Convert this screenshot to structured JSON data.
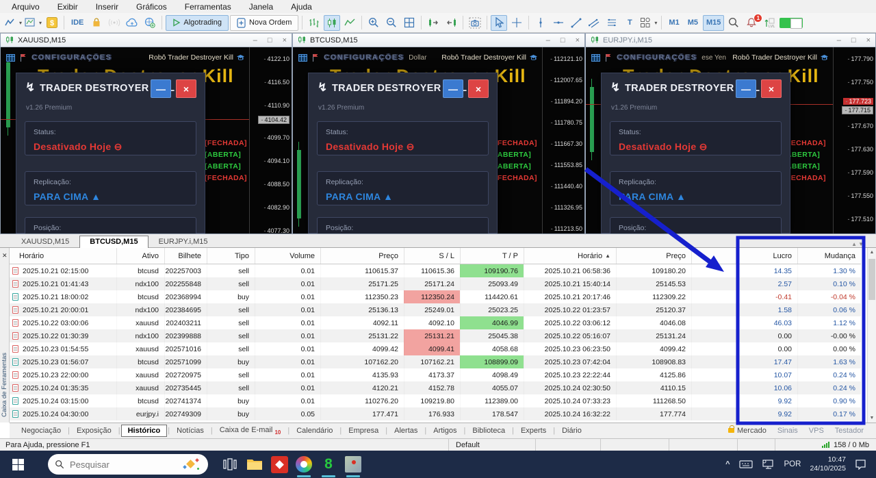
{
  "menu": {
    "items": [
      "Arquivo",
      "Exibir",
      "Inserir",
      "Gráficos",
      "Ferramentas",
      "Janela",
      "Ajuda"
    ]
  },
  "toolbar": {
    "ide": "IDE",
    "algotrading": "Algotrading",
    "nova_ordem": "Nova Ordem",
    "text_tool": "T",
    "m1": "M1",
    "m5": "M5",
    "m15": "M15",
    "notification_badge": "1"
  },
  "panel": {
    "title": "TRADER DESTROYER KILL",
    "version": "v1.26 Premium",
    "status_label": "Status:",
    "status_value": "Desativado Hoje",
    "replication_label": "Replicação:",
    "replication_value": "PARA CIMA",
    "position_label": "Posição:"
  },
  "charts": [
    {
      "title": "XAUUSD,M15",
      "config": "CONFIGURAÇÕES",
      "desc": "",
      "robo": "Robô Trader Destroyer Kill",
      "watermark": "Trader Destroyer Kill",
      "logo": "ER",
      "labels": [
        {
          "t": "[FECHADA]",
          "c": "red"
        },
        {
          "t": "[ABERTA]",
          "c": "green"
        },
        {
          "t": "[ABERTA]",
          "c": "green"
        },
        {
          "t": "[FECHADA]",
          "c": "red"
        }
      ],
      "prices": [
        {
          "v": "4122.10"
        },
        {
          "v": "4116.50"
        },
        {
          "v": "4110.90"
        },
        {
          "v": "4104.42",
          "hl": "gray"
        },
        {
          "v": "4099.70"
        },
        {
          "v": "4094.10"
        },
        {
          "v": "4088.50"
        },
        {
          "v": "4082.90"
        },
        {
          "v": "4077.30"
        }
      ]
    },
    {
      "title": "BTCUSD,M15",
      "config": "CONFIGURAÇÕES",
      "desc": "Dollar",
      "robo": "Robô Trader Destroyer Kill",
      "watermark": "Trader Destroyer Kill",
      "logo": "ER",
      "labels": [
        {
          "t": "[FECHADA]",
          "c": "red"
        },
        {
          "t": "[ABERTA]",
          "c": "green"
        },
        {
          "t": "[ABERTA]",
          "c": "green"
        },
        {
          "t": "[FECHADA]",
          "c": "red"
        }
      ],
      "prices": [
        {
          "v": "112121.10"
        },
        {
          "v": "112007.65"
        },
        {
          "v": "111894.20"
        },
        {
          "v": "111780.75"
        },
        {
          "v": "111667.30"
        },
        {
          "v": "111553.85"
        },
        {
          "v": "111440.40"
        },
        {
          "v": "111326.95"
        },
        {
          "v": "111213.50"
        }
      ]
    },
    {
      "title": "EURJPY.i,M15",
      "config": "CONFIGURAÇÕES",
      "desc": "ese Yen",
      "robo": "Robô Trader Destroyer Kill",
      "watermark": "Trader Destroyer Kill",
      "logo": "ER",
      "labels": [
        {
          "t": "[FECHADA]",
          "c": "red"
        },
        {
          "t": "[ABERTA]",
          "c": "green"
        },
        {
          "t": "[ABERTA]",
          "c": "green"
        },
        {
          "t": "[FECHADA]",
          "c": "red"
        }
      ],
      "prices": [
        {
          "v": "177.790"
        },
        {
          "v": "177.750"
        },
        {
          "v": "177.723",
          "hl": "red"
        },
        {
          "v": "177.715",
          "hl": "gray"
        },
        {
          "v": "177.670"
        },
        {
          "v": "177.630"
        },
        {
          "v": "177.590"
        },
        {
          "v": "177.550"
        },
        {
          "v": "177.510"
        }
      ]
    }
  ],
  "toolbox": {
    "chart_tabs": [
      {
        "label": "XAUUSD,M15",
        "active": false
      },
      {
        "label": "BTCUSD,M15",
        "active": true
      },
      {
        "label": "EURJPY.i,M15",
        "active": false
      }
    ],
    "columns": [
      "Horário",
      "Ativo",
      "Bilhete",
      "Tipo",
      "Volume",
      "Preço",
      "S / L",
      "T / P",
      "Horário",
      "Preço",
      "",
      "Lucro",
      "Mudança"
    ],
    "rows": [
      {
        "open_time": "2025.10.21 02:15:00",
        "symbol": "btcusd",
        "ticket": "202257003",
        "type": "sell",
        "volume": "0.01",
        "open_price": "110615.37",
        "sl": "110615.36",
        "sl_hl": false,
        "tp": "109190.76",
        "tp_hl": true,
        "close_time": "2025.10.21 06:58:36",
        "close_price": "109180.20",
        "profit": "14.35",
        "change": "1.30 %"
      },
      {
        "open_time": "2025.10.21 01:41:43",
        "symbol": "ndx100",
        "ticket": "202255848",
        "type": "sell",
        "volume": "0.01",
        "open_price": "25171.25",
        "sl": "25171.24",
        "sl_hl": false,
        "tp": "25093.49",
        "tp_hl": false,
        "close_time": "2025.10.21 15:40:14",
        "close_price": "25145.53",
        "profit": "2.57",
        "change": "0.10 %"
      },
      {
        "open_time": "2025.10.21 18:00:02",
        "symbol": "btcusd",
        "ticket": "202368994",
        "type": "buy",
        "volume": "0.01",
        "open_price": "112350.23",
        "sl": "112350.24",
        "sl_hl": true,
        "tp": "114420.61",
        "tp_hl": false,
        "close_time": "2025.10.21 20:17:46",
        "close_price": "112309.22",
        "profit": "-0.41",
        "change": "-0.04 %"
      },
      {
        "open_time": "2025.10.21 20:00:01",
        "symbol": "ndx100",
        "ticket": "202384695",
        "type": "sell",
        "volume": "0.01",
        "open_price": "25136.13",
        "sl": "25249.01",
        "sl_hl": false,
        "tp": "25023.25",
        "tp_hl": false,
        "close_time": "2025.10.22 01:23:57",
        "close_price": "25120.37",
        "profit": "1.58",
        "change": "0.06 %"
      },
      {
        "open_time": "2025.10.22 03:00:06",
        "symbol": "xauusd",
        "ticket": "202403211",
        "type": "sell",
        "volume": "0.01",
        "open_price": "4092.11",
        "sl": "4092.10",
        "sl_hl": false,
        "tp": "4046.99",
        "tp_hl": true,
        "close_time": "2025.10.22 03:06:12",
        "close_price": "4046.08",
        "profit": "46.03",
        "change": "1.12 %"
      },
      {
        "open_time": "2025.10.22 01:30:39",
        "symbol": "ndx100",
        "ticket": "202399888",
        "type": "sell",
        "volume": "0.01",
        "open_price": "25131.22",
        "sl": "25131.21",
        "sl_hl": true,
        "tp": "25045.38",
        "tp_hl": false,
        "close_time": "2025.10.22 05:16:07",
        "close_price": "25131.24",
        "profit": "0.00",
        "change": "-0.00 %"
      },
      {
        "open_time": "2025.10.23 01:54:55",
        "symbol": "xauusd",
        "ticket": "202571016",
        "type": "sell",
        "volume": "0.01",
        "open_price": "4099.42",
        "sl": "4099.41",
        "sl_hl": true,
        "tp": "4058.68",
        "tp_hl": false,
        "close_time": "2025.10.23 06:23:50",
        "close_price": "4099.42",
        "profit": "0.00",
        "change": "0.00 %"
      },
      {
        "open_time": "2025.10.23 01:56:07",
        "symbol": "btcusd",
        "ticket": "202571099",
        "type": "buy",
        "volume": "0.01",
        "open_price": "107162.20",
        "sl": "107162.21",
        "sl_hl": false,
        "tp": "108899.09",
        "tp_hl": true,
        "close_time": "2025.10.23 07:42:04",
        "close_price": "108908.83",
        "profit": "17.47",
        "change": "1.63 %"
      },
      {
        "open_time": "2025.10.23 22:00:00",
        "symbol": "xauusd",
        "ticket": "202720975",
        "type": "sell",
        "volume": "0.01",
        "open_price": "4135.93",
        "sl": "4173.37",
        "sl_hl": false,
        "tp": "4098.49",
        "tp_hl": false,
        "close_time": "2025.10.23 22:22:44",
        "close_price": "4125.86",
        "profit": "10.07",
        "change": "0.24 %"
      },
      {
        "open_time": "2025.10.24 01:35:35",
        "symbol": "xauusd",
        "ticket": "202735445",
        "type": "sell",
        "volume": "0.01",
        "open_price": "4120.21",
        "sl": "4152.78",
        "sl_hl": false,
        "tp": "4055.07",
        "tp_hl": false,
        "close_time": "2025.10.24 02:30:50",
        "close_price": "4110.15",
        "profit": "10.06",
        "change": "0.24 %"
      },
      {
        "open_time": "2025.10.24 03:15:00",
        "symbol": "btcusd",
        "ticket": "202741374",
        "type": "buy",
        "volume": "0.01",
        "open_price": "110276.20",
        "sl": "109219.80",
        "sl_hl": false,
        "tp": "112389.00",
        "tp_hl": false,
        "close_time": "2025.10.24 07:33:23",
        "close_price": "111268.50",
        "profit": "9.92",
        "change": "0.90 %"
      },
      {
        "open_time": "2025.10.24 04:30:00",
        "symbol": "eurjpy.i",
        "ticket": "202749309",
        "type": "buy",
        "volume": "0.05",
        "open_price": "177.471",
        "sl": "176.933",
        "sl_hl": false,
        "tp": "178.547",
        "tp_hl": false,
        "close_time": "2025.10.24 16:32:22",
        "close_price": "177.774",
        "profit": "9.92",
        "change": "0.17 %"
      }
    ],
    "bottom_tabs": [
      "Negociação",
      "Exposição",
      "Histórico",
      "Notícias",
      "Caixa de E-mail",
      "Calendário",
      "Empresa",
      "Alertas",
      "Artigos",
      "Biblioteca",
      "Experts",
      "Diário"
    ],
    "active_bottom_tab": "Histórico",
    "email_badge": "10",
    "right_items": [
      "Mercado",
      "Sinais",
      "VPS",
      "Testador"
    ]
  },
  "statusbar": {
    "help": "Para Ajuda, pressione F1",
    "profile": "Default",
    "traffic": "158 / 0 Mb"
  },
  "taskbar": {
    "search_placeholder": "Pesquisar",
    "language": "POR",
    "time": "10:47",
    "date": "24/10/2025"
  }
}
